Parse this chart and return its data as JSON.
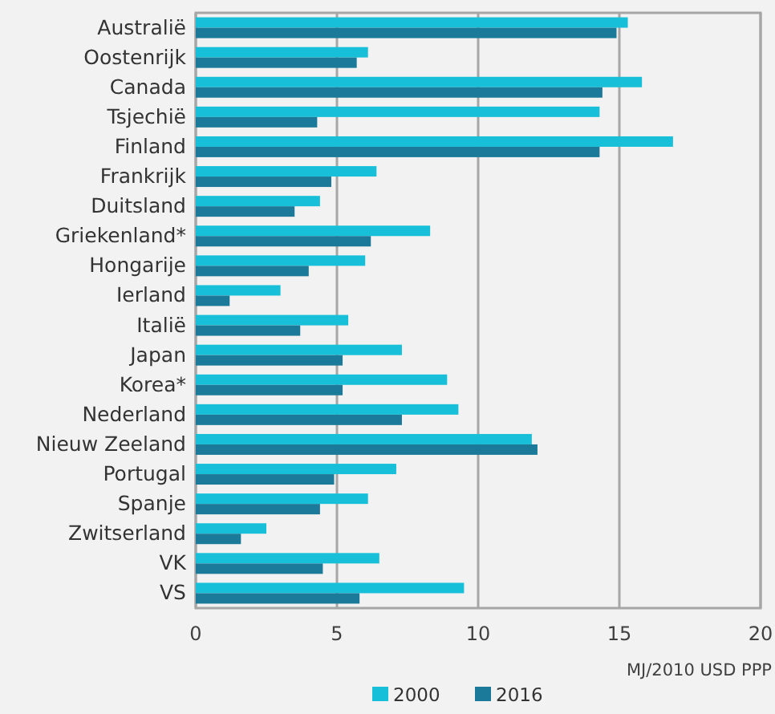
{
  "chart_data": {
    "type": "bar",
    "orientation": "horizontal",
    "xlabel": "MJ/2010 USD PPP",
    "categories": [
      "Australië",
      "Oostenrijk",
      "Canada",
      "Tsjechië",
      "Finland",
      "Frankrijk",
      "Duitsland",
      "Griekenland*",
      "Hongarije",
      "Ierland",
      "Italië",
      "Japan",
      "Korea*",
      "Nederland",
      "Nieuw Zeeland",
      "Portugal",
      "Spanje",
      "Zwitserland",
      "VK",
      "VS"
    ],
    "series": [
      {
        "name": "2000",
        "color": "#17c0d8",
        "values": [
          15.3,
          6.1,
          15.8,
          14.3,
          16.9,
          6.4,
          4.4,
          8.3,
          6.0,
          3.0,
          5.4,
          7.3,
          8.9,
          9.3,
          11.9,
          7.1,
          6.1,
          2.5,
          6.5,
          9.5
        ]
      },
      {
        "name": "2016",
        "color": "#1b7a99",
        "values": [
          14.9,
          5.7,
          14.4,
          4.3,
          14.3,
          4.8,
          3.5,
          6.2,
          4.0,
          1.2,
          3.7,
          5.2,
          5.2,
          7.3,
          12.1,
          4.9,
          4.4,
          1.6,
          4.5,
          5.8
        ]
      }
    ],
    "xlim": [
      0,
      20
    ],
    "xticks": [
      0,
      5,
      10,
      15,
      20
    ],
    "grid": "x",
    "legend": "bottom"
  }
}
